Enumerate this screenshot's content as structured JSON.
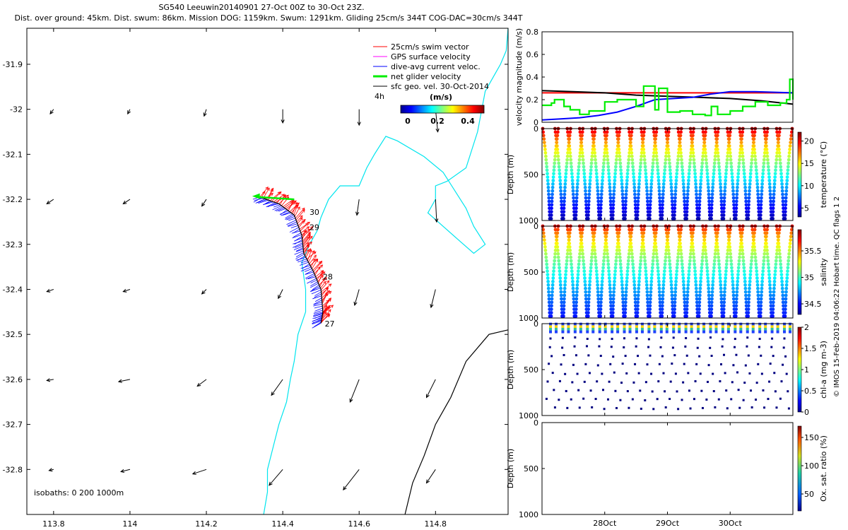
{
  "header": {
    "line1": "SG540 Leeuwin20140901 27-Oct 00Z to 30-Oct 23Z.",
    "line2": "Dist. over ground: 45km. Dist. swum: 86km. Mission DOG: 1159km. Swum: 1291km. Gliding 25cm/s 344T COG-DAC=30cm/s 344T"
  },
  "colors": {
    "swim_vector": "#ff0000",
    "gps_surface": "#ff00ff",
    "dive_avg": "#0000ff",
    "net_glider": "#00ee00",
    "sfc_geo": "#000000",
    "coast_200m": "#00e5ee",
    "isobath_1000m": "#000000"
  },
  "chart_data": [
    {
      "type": "map-quiver",
      "legend": [
        {
          "label": "25cm/s swim vector",
          "color": "#ff0000"
        },
        {
          "label": "GPS surface velocity",
          "color": "#ff00ff"
        },
        {
          "label": "dive-avg current veloc.",
          "color": "#0000ff"
        },
        {
          "label": "net glider velocity",
          "color": "#00ee00"
        },
        {
          "label": "sfc geo. vel. 30-Oct-2014",
          "color": "#000000"
        }
      ],
      "scale_label": "4h",
      "colorbar": {
        "label": "(m/s)",
        "ticks": [
          "0",
          "0.2",
          "0.4"
        ],
        "range": [
          -0.05,
          0.5
        ]
      },
      "isobath_label": "isobaths: 0   200  1000m",
      "xlim": [
        113.73,
        114.99
      ],
      "ylim": [
        -32.9,
        -31.82
      ],
      "xticks": [
        113.8,
        114,
        114.2,
        114.4,
        114.6,
        114.8
      ],
      "xtick_labels": [
        "113.8",
        "114",
        "114.2",
        "114.4",
        "114.6",
        "114.8"
      ],
      "yticks": [
        -31.9,
        -32,
        -32.1,
        -32.2,
        -32.3,
        -32.4,
        -32.5,
        -32.6,
        -32.7,
        -32.8
      ],
      "ytick_labels": [
        "-31.9",
        "-32",
        "-32.1",
        "-32.2",
        "-32.3",
        "-32.4",
        "-32.5",
        "-32.6",
        "-32.7",
        "-32.8"
      ],
      "day_labels": [
        {
          "label": "27",
          "lon": 114.51,
          "lat": -32.476
        },
        {
          "label": "28",
          "lon": 114.505,
          "lat": -32.372
        },
        {
          "label": "29",
          "lon": 114.47,
          "lat": -32.262
        },
        {
          "label": "30",
          "lon": 114.47,
          "lat": -32.228
        }
      ],
      "track": [
        [
          114.5,
          -32.475
        ],
        [
          114.505,
          -32.45
        ],
        [
          114.5,
          -32.4
        ],
        [
          114.48,
          -32.36
        ],
        [
          114.455,
          -32.32
        ],
        [
          114.45,
          -32.28
        ],
        [
          114.43,
          -32.235
        ],
        [
          114.39,
          -32.21
        ],
        [
          114.34,
          -32.195
        ]
      ],
      "isobath_200": [
        [
          114.99,
          -31.82
        ],
        [
          114.985,
          -31.87
        ],
        [
          114.97,
          -31.9
        ],
        [
          114.95,
          -31.93
        ],
        [
          114.93,
          -31.96
        ],
        [
          114.91,
          -32.05
        ],
        [
          114.88,
          -32.13
        ],
        [
          114.83,
          -32.16
        ],
        [
          114.8,
          -32.17
        ],
        [
          114.8,
          -32.2
        ],
        [
          114.78,
          -32.23
        ],
        [
          114.82,
          -32.26
        ],
        [
          114.86,
          -32.29
        ],
        [
          114.9,
          -32.32
        ],
        [
          114.93,
          -32.3
        ],
        [
          114.9,
          -32.26
        ],
        [
          114.88,
          -32.22
        ],
        [
          114.82,
          -32.14
        ],
        [
          114.77,
          -32.105
        ],
        [
          114.7,
          -32.07
        ],
        [
          114.67,
          -32.06
        ],
        [
          114.64,
          -32.1
        ],
        [
          114.62,
          -32.13
        ],
        [
          114.6,
          -32.17
        ],
        [
          114.55,
          -32.17
        ],
        [
          114.52,
          -32.2
        ],
        [
          114.5,
          -32.24
        ],
        [
          114.49,
          -32.27
        ],
        [
          114.47,
          -32.3
        ],
        [
          114.45,
          -32.34
        ],
        [
          114.46,
          -32.4
        ],
        [
          114.46,
          -32.45
        ],
        [
          114.44,
          -32.5
        ],
        [
          114.43,
          -32.56
        ],
        [
          114.42,
          -32.6
        ],
        [
          114.41,
          -32.65
        ],
        [
          114.39,
          -32.7
        ],
        [
          114.375,
          -32.75
        ],
        [
          114.36,
          -32.8
        ],
        [
          114.36,
          -32.85
        ],
        [
          114.35,
          -32.9
        ]
      ],
      "isobath_1000": [
        [
          114.99,
          -32.49
        ],
        [
          114.94,
          -32.5
        ],
        [
          114.88,
          -32.56
        ],
        [
          114.84,
          -32.64
        ],
        [
          114.8,
          -32.7
        ],
        [
          114.77,
          -32.77
        ],
        [
          114.74,
          -32.83
        ],
        [
          114.72,
          -32.9
        ]
      ],
      "geo_vectors": [
        {
          "lon": 113.8,
          "lat": -32.8,
          "u": -0.02,
          "v": -0.005
        },
        {
          "lon": 114,
          "lat": -32.8,
          "u": -0.04,
          "v": -0.01
        },
        {
          "lon": 114.2,
          "lat": -32.8,
          "u": -0.06,
          "v": -0.02
        },
        {
          "lon": 114.4,
          "lat": -32.8,
          "u": -0.06,
          "v": -0.07
        },
        {
          "lon": 114.6,
          "lat": -32.8,
          "u": -0.07,
          "v": -0.09
        },
        {
          "lon": 114.8,
          "lat": -32.8,
          "u": -0.04,
          "v": -0.06
        },
        {
          "lon": 113.8,
          "lat": -32.6,
          "u": -0.03,
          "v": -0.005
        },
        {
          "lon": 114,
          "lat": -32.6,
          "u": -0.05,
          "v": -0.01
        },
        {
          "lon": 114.2,
          "lat": -32.6,
          "u": -0.04,
          "v": -0.03
        },
        {
          "lon": 114.4,
          "lat": -32.6,
          "u": -0.05,
          "v": -0.07
        },
        {
          "lon": 114.6,
          "lat": -32.6,
          "u": -0.04,
          "v": -0.1
        },
        {
          "lon": 114.8,
          "lat": -32.6,
          "u": -0.04,
          "v": -0.08
        },
        {
          "lon": 113.8,
          "lat": -32.4,
          "u": -0.03,
          "v": -0.01
        },
        {
          "lon": 114,
          "lat": -32.4,
          "u": -0.03,
          "v": -0.01
        },
        {
          "lon": 114.2,
          "lat": -32.4,
          "u": -0.02,
          "v": -0.02
        },
        {
          "lon": 114.4,
          "lat": -32.4,
          "u": -0.02,
          "v": -0.04
        },
        {
          "lon": 114.6,
          "lat": -32.4,
          "u": -0.02,
          "v": -0.07
        },
        {
          "lon": 114.8,
          "lat": -32.4,
          "u": -0.02,
          "v": -0.08
        },
        {
          "lon": 113.8,
          "lat": -32.2,
          "u": -0.03,
          "v": -0.02
        },
        {
          "lon": 114,
          "lat": -32.2,
          "u": -0.03,
          "v": -0.02
        },
        {
          "lon": 114.2,
          "lat": -32.2,
          "u": -0.02,
          "v": -0.03
        },
        {
          "lon": 114.6,
          "lat": -32.2,
          "u": -0.01,
          "v": -0.07
        },
        {
          "lon": 114.8,
          "lat": -32.2,
          "u": 0.005,
          "v": -0.1
        },
        {
          "lon": 113.8,
          "lat": -32,
          "u": -0.015,
          "v": -0.02
        },
        {
          "lon": 114,
          "lat": -32,
          "u": -0.01,
          "v": -0.02
        },
        {
          "lon": 114.2,
          "lat": -32,
          "u": -0.01,
          "v": -0.03
        },
        {
          "lon": 114.4,
          "lat": -32,
          "u": 0.0,
          "v": -0.06
        },
        {
          "lon": 114.6,
          "lat": -32,
          "u": 0.0,
          "v": -0.07
        },
        {
          "lon": 114.8,
          "lat": -32,
          "u": 0.01,
          "v": -0.1
        }
      ]
    },
    {
      "type": "line",
      "ylabel": "velocity magnitude (m/s)",
      "ylim": [
        0,
        0.8
      ],
      "yticks": [
        0,
        0.2,
        0.4,
        0.6,
        0.8
      ],
      "ytick_labels": [
        "0",
        "0.2",
        "0.4",
        "0.6",
        "0.8"
      ],
      "xlim": [
        27.0,
        31.0
      ],
      "series": [
        {
          "color": "#ff0000",
          "x": [
            27.0,
            31.0
          ],
          "y": [
            0.26,
            0.26
          ]
        },
        {
          "color": "#000000",
          "x": [
            27.0,
            27.5,
            28.0,
            28.5,
            29.0,
            29.5,
            30.0,
            30.5,
            31.0
          ],
          "y": [
            0.28,
            0.27,
            0.26,
            0.24,
            0.23,
            0.22,
            0.21,
            0.19,
            0.16
          ]
        },
        {
          "color": "#0000ff",
          "x": [
            27.0,
            27.3,
            27.6,
            27.9,
            28.2,
            28.5,
            28.8,
            29.1,
            29.4,
            29.7,
            30.0,
            30.4,
            31.0
          ],
          "y": [
            0.02,
            0.03,
            0.04,
            0.06,
            0.09,
            0.14,
            0.2,
            0.21,
            0.22,
            0.25,
            0.27,
            0.27,
            0.26
          ]
        },
        {
          "color": "#00ee00",
          "x": [
            27.0,
            27.15,
            27.2,
            27.35,
            27.45,
            27.6,
            27.75,
            28.0,
            28.2,
            28.5,
            28.62,
            28.8,
            28.86,
            29.0,
            29.2,
            29.4,
            29.6,
            29.7,
            29.8,
            30.0,
            30.2,
            30.4,
            30.6,
            30.8,
            30.9,
            30.95,
            31.0
          ],
          "y": [
            0.15,
            0.17,
            0.2,
            0.14,
            0.11,
            0.07,
            0.1,
            0.18,
            0.2,
            0.14,
            0.32,
            0.11,
            0.3,
            0.09,
            0.1,
            0.07,
            0.06,
            0.14,
            0.07,
            0.1,
            0.14,
            0.18,
            0.15,
            0.17,
            0.2,
            0.38,
            0.2
          ]
        }
      ]
    },
    {
      "type": "scatter",
      "variable": "temperature",
      "ylabel": "Depth (m)",
      "ylim": [
        1000,
        0
      ],
      "yticks": [
        0,
        500,
        1000
      ],
      "ytick_labels": [
        "0",
        "500",
        "1000"
      ],
      "cbar_label": "temperature (°C)",
      "cbar_range": [
        3,
        22
      ],
      "cbar_ticks": [
        5,
        10,
        15,
        20
      ],
      "cbar_tick_labels": [
        "5",
        "10",
        "15",
        "20"
      ],
      "profiles": 20,
      "max_depth": 980
    },
    {
      "type": "scatter",
      "variable": "salinity",
      "ylabel": "Depth (m)",
      "ylim": [
        1000,
        0
      ],
      "yticks": [
        0,
        500,
        1000
      ],
      "ytick_labels": [
        "0",
        "500",
        "1000"
      ],
      "cbar_label": "salinity",
      "cbar_range": [
        34.3,
        35.9
      ],
      "cbar_ticks": [
        34.5,
        35,
        35.5
      ],
      "cbar_tick_labels": [
        "34.5",
        "35",
        "35.5"
      ],
      "profiles": 20,
      "max_depth": 980
    },
    {
      "type": "scatter",
      "variable": "chl-a",
      "ylabel": "Depth (m)",
      "ylim": [
        1000,
        0
      ],
      "yticks": [
        0,
        500,
        1000
      ],
      "ytick_labels": [
        "0",
        "500",
        "1000"
      ],
      "cbar_label": "chl-a (mg m-3)",
      "cbar_range": [
        0,
        2
      ],
      "cbar_ticks": [
        0,
        0.5,
        1,
        1.5,
        2
      ],
      "cbar_tick_labels": [
        "0",
        "0.5",
        "1",
        "1.5",
        "2"
      ],
      "profiles": 20,
      "max_depth": 1000
    },
    {
      "type": "scatter",
      "variable": "oxygen",
      "ylabel": "Depth (m)",
      "ylim": [
        1000,
        0
      ],
      "yticks": [
        0,
        500,
        1000
      ],
      "ytick_labels": [
        "0",
        "500",
        "1000"
      ],
      "cbar_label": "Ox. sat. ratio (%)",
      "cbar_range": [
        20,
        170
      ],
      "cbar_ticks": [
        50,
        100,
        150
      ],
      "cbar_tick_labels": [
        "50",
        "100",
        "150"
      ],
      "xticks": [
        28,
        29,
        30
      ],
      "xtick_labels": [
        "28Oct",
        "29Oct",
        "30Oct"
      ]
    }
  ],
  "credit": "© IMOS 15-Feb-2019 04:06:22 Hobart time. QC flags 1  2"
}
